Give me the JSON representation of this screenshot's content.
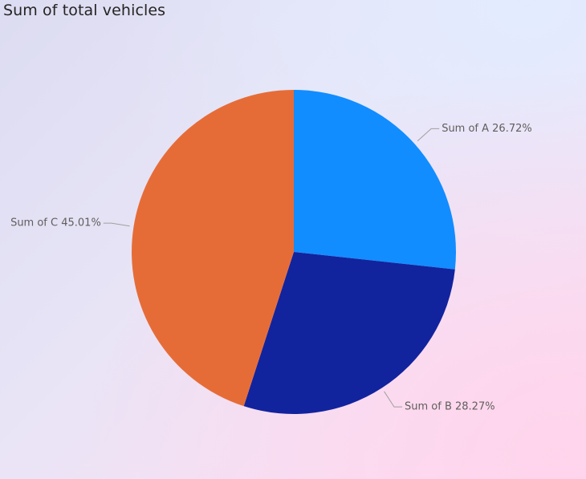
{
  "chart_data": {
    "type": "pie",
    "title": "Sum of total vehicles",
    "slices": [
      {
        "label": "Sum of A",
        "percent": 26.72,
        "display": "Sum of A 26.72%",
        "color": "#118DFF"
      },
      {
        "label": "Sum of B",
        "percent": 28.27,
        "display": "Sum of B 28.27%",
        "color": "#12239E"
      },
      {
        "label": "Sum of C",
        "percent": 45.01,
        "display": "Sum of C 45.01%",
        "color": "#E66C37"
      }
    ],
    "start": "top",
    "direction": "clockwise",
    "legend": "none",
    "data_labels": "outside with leader lines",
    "leader_line_color": "#A19F9D"
  }
}
